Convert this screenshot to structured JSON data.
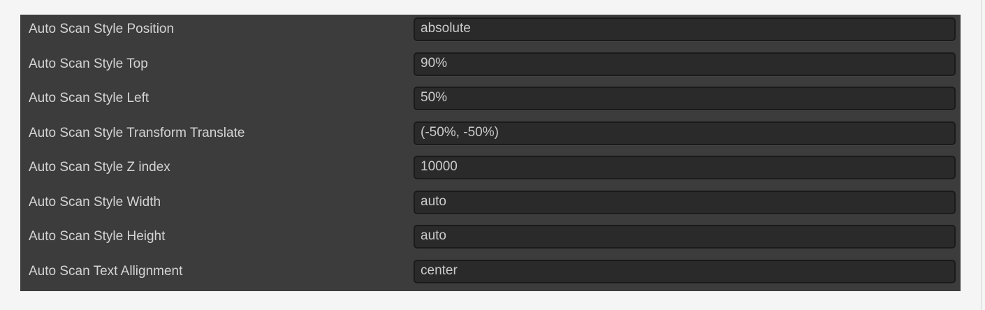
{
  "colors": {
    "page_background": "#f5f5f6",
    "panel_background": "#3c3c3c",
    "field_background": "#2a2a2a",
    "field_border": "#1a1a1a",
    "label_text": "#d4d4d4",
    "value_text": "#cbcbcb"
  },
  "panel": {
    "rows": [
      {
        "label": "Auto Scan Style Position",
        "value": "absolute"
      },
      {
        "label": "Auto Scan Style Top",
        "value": "90%"
      },
      {
        "label": "Auto Scan Style Left",
        "value": "50%"
      },
      {
        "label": "Auto Scan Style Transform Translate",
        "value": "(-50%, -50%)"
      },
      {
        "label": "Auto Scan Style Z index",
        "value": "10000"
      },
      {
        "label": "Auto Scan Style Width",
        "value": "auto"
      },
      {
        "label": "Auto Scan Style Height",
        "value": "auto"
      },
      {
        "label": "Auto Scan Text Allignment",
        "value": "center"
      }
    ]
  }
}
